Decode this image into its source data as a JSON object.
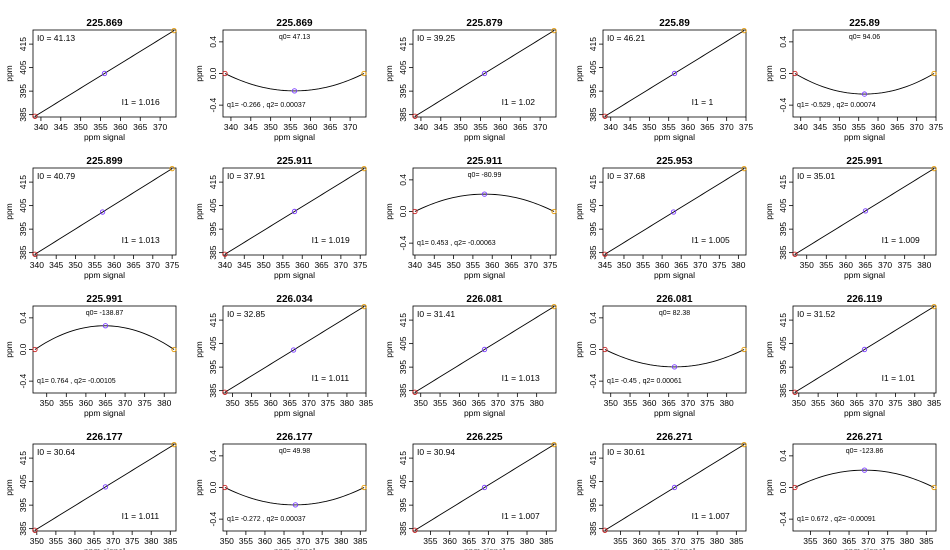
{
  "axis_text": {
    "xlabel": "ppm signal",
    "ylabel": "ppm"
  },
  "colors": {
    "start": "#cc2222",
    "mid": "#7a3cff",
    "end": "#e69900",
    "line": "#000000"
  },
  "chart_data": [
    {
      "type": "line",
      "title": "225.869",
      "xlabel": "ppm signal",
      "ylabel": "ppm",
      "xlim": [
        338,
        374
      ],
      "ylim": [
        384,
        421
      ],
      "xticks": [
        340,
        345,
        350,
        355,
        360,
        365,
        370
      ],
      "yticks": [
        385,
        395,
        405,
        415
      ],
      "model": "linear",
      "x": [
        338.5,
        356,
        373.5
      ],
      "intercept": 41.13,
      "slope": 1.016,
      "annotations": [
        {
          "label": "I0 = ",
          "value": "41.13",
          "pos": "top-left"
        },
        {
          "label": "I1 = ",
          "value": "1.016",
          "pos": "bottom-right"
        }
      ]
    },
    {
      "type": "line",
      "title": "225.869",
      "xlabel": "ppm signal",
      "ylabel": "ppm",
      "xlim": [
        338,
        374
      ],
      "ylim": [
        -0.55,
        0.55
      ],
      "xticks": [
        340,
        345,
        350,
        355,
        360,
        365,
        370
      ],
      "yticks": [
        -0.4,
        0.0,
        0.4
      ],
      "model": "quadratic",
      "x": [
        338.5,
        356,
        373.5
      ],
      "q0": "47.13",
      "q1": "-0.266",
      "q2": "0.00037",
      "annotations": [
        {
          "label": "q0= ",
          "value": "47.13",
          "pos": "top-center"
        },
        {
          "label": "q1= -0.266 , q2= ",
          "value": "0.00037",
          "pos": "bottom-left"
        }
      ]
    },
    {
      "type": "line",
      "title": "225.879",
      "xlabel": "ppm signal",
      "ylabel": "ppm",
      "xlim": [
        338,
        374
      ],
      "ylim": [
        384,
        421
      ],
      "xticks": [
        340,
        345,
        350,
        355,
        360,
        365,
        370
      ],
      "yticks": [
        385,
        395,
        405,
        415
      ],
      "model": "linear",
      "x": [
        338.5,
        356,
        373.5
      ],
      "intercept": 39.25,
      "slope": 1.02,
      "annotations": [
        {
          "label": "I0 = ",
          "value": "39.25",
          "pos": "top-left"
        },
        {
          "label": "I1 = ",
          "value": "1.02",
          "pos": "bottom-right"
        }
      ]
    },
    {
      "type": "line",
      "title": "225.89",
      "xlabel": "ppm signal",
      "ylabel": "ppm",
      "xlim": [
        338,
        375
      ],
      "ylim": [
        384,
        421
      ],
      "xticks": [
        340,
        345,
        350,
        355,
        360,
        365,
        370,
        375
      ],
      "yticks": [
        385,
        395,
        405,
        415
      ],
      "model": "linear",
      "x": [
        338.5,
        356.5,
        374.5
      ],
      "intercept": 46.21,
      "slope": 1,
      "annotations": [
        {
          "label": "I0 = ",
          "value": "46.21",
          "pos": "top-left"
        },
        {
          "label": "I1 = ",
          "value": "1",
          "pos": "bottom-right"
        }
      ]
    },
    {
      "type": "line",
      "title": "225.89",
      "xlabel": "ppm signal",
      "ylabel": "ppm",
      "xlim": [
        338,
        375
      ],
      "ylim": [
        -0.55,
        0.55
      ],
      "xticks": [
        340,
        345,
        350,
        355,
        360,
        365,
        370,
        375
      ],
      "yticks": [
        -0.4,
        0.0,
        0.4
      ],
      "model": "quadratic",
      "x": [
        338.5,
        356.5,
        374.5
      ],
      "q0": "94.06",
      "q1": "-0.529",
      "q2": "0.00074",
      "annotations": [
        {
          "label": "q0= ",
          "value": "94.06",
          "pos": "top-center"
        },
        {
          "label": "q1= -0.529 , q2= ",
          "value": "0.00074",
          "pos": "bottom-left"
        }
      ]
    },
    {
      "type": "line",
      "title": "225.899",
      "xlabel": "ppm signal",
      "ylabel": "ppm",
      "xlim": [
        339,
        376
      ],
      "ylim": [
        384,
        421
      ],
      "xticks": [
        340,
        345,
        350,
        355,
        360,
        365,
        370,
        375
      ],
      "yticks": [
        385,
        395,
        405,
        415
      ],
      "model": "linear",
      "x": [
        339.5,
        357,
        375
      ],
      "intercept": 40.79,
      "slope": 1.013,
      "annotations": [
        {
          "label": "I0 = ",
          "value": "40.79",
          "pos": "top-left"
        },
        {
          "label": "I1 = ",
          "value": "1.013",
          "pos": "bottom-right"
        }
      ]
    },
    {
      "type": "line",
      "title": "225.911",
      "xlabel": "ppm signal",
      "ylabel": "ppm",
      "xlim": [
        339.5,
        376.5
      ],
      "ylim": [
        384,
        421
      ],
      "xticks": [
        340,
        345,
        350,
        355,
        360,
        365,
        370,
        375
      ],
      "yticks": [
        385,
        395,
        405,
        415
      ],
      "model": "linear",
      "x": [
        340,
        358,
        376
      ],
      "intercept": 37.91,
      "slope": 1.019,
      "annotations": [
        {
          "label": "I0 = ",
          "value": "37.91",
          "pos": "top-left"
        },
        {
          "label": "I1 = ",
          "value": "1.019",
          "pos": "bottom-right"
        }
      ]
    },
    {
      "type": "line",
      "title": "225.911",
      "xlabel": "ppm signal",
      "ylabel": "ppm",
      "xlim": [
        339.5,
        376.5
      ],
      "ylim": [
        -0.55,
        0.55
      ],
      "xticks": [
        340,
        345,
        350,
        355,
        360,
        365,
        370,
        375
      ],
      "yticks": [
        -0.4,
        0.0,
        0.4
      ],
      "model": "quadratic",
      "x": [
        340,
        358,
        376
      ],
      "q0": "-80.99",
      "q1": "0.453",
      "q2": "-0.00063",
      "annotations": [
        {
          "label": "q0= ",
          "value": "-80.99",
          "pos": "top-center"
        },
        {
          "label": "q1= 0.453 , q2= ",
          "value": "-0.00063",
          "pos": "bottom-left"
        }
      ]
    },
    {
      "type": "line",
      "title": "225.953",
      "xlabel": "ppm signal",
      "ylabel": "ppm",
      "xlim": [
        344.5,
        382
      ],
      "ylim": [
        384,
        421
      ],
      "xticks": [
        345,
        350,
        355,
        360,
        365,
        370,
        375,
        380
      ],
      "yticks": [
        385,
        395,
        405,
        415
      ],
      "model": "linear",
      "x": [
        345,
        363,
        381.5
      ],
      "intercept": 37.68,
      "slope": 1.005,
      "annotations": [
        {
          "label": "I0 = ",
          "value": "37.68",
          "pos": "top-left"
        },
        {
          "label": "I1 = ",
          "value": "1.005",
          "pos": "bottom-right"
        }
      ]
    },
    {
      "type": "line",
      "title": "225.991",
      "xlabel": "ppm signal",
      "ylabel": "ppm",
      "xlim": [
        346.5,
        383
      ],
      "ylim": [
        384,
        421
      ],
      "xticks": [
        350,
        355,
        360,
        365,
        370,
        375,
        380
      ],
      "yticks": [
        385,
        395,
        405,
        415
      ],
      "model": "linear",
      "x": [
        347,
        365,
        382.5
      ],
      "intercept": 35.01,
      "slope": 1.009,
      "annotations": [
        {
          "label": "I0 = ",
          "value": "35.01",
          "pos": "top-left"
        },
        {
          "label": "I1 = ",
          "value": "1.009",
          "pos": "bottom-right"
        }
      ]
    },
    {
      "type": "line",
      "title": "225.991",
      "xlabel": "ppm signal",
      "ylabel": "ppm",
      "xlim": [
        346.5,
        383
      ],
      "ylim": [
        -0.55,
        0.55
      ],
      "xticks": [
        350,
        355,
        360,
        365,
        370,
        375,
        380
      ],
      "yticks": [
        -0.4,
        0.0,
        0.4
      ],
      "model": "quadratic",
      "x": [
        347,
        365,
        382.5
      ],
      "q0": "-138.87",
      "q1": "0.764",
      "q2": "-0.00105",
      "annotations": [
        {
          "label": "q0= ",
          "value": "-138.87",
          "pos": "top-center"
        },
        {
          "label": "q1= 0.764 , q2= ",
          "value": "-0.00105",
          "pos": "bottom-left"
        }
      ]
    },
    {
      "type": "line",
      "title": "226.034",
      "xlabel": "ppm signal",
      "ylabel": "ppm",
      "xlim": [
        347.5,
        385
      ],
      "ylim": [
        384,
        421
      ],
      "xticks": [
        350,
        355,
        360,
        365,
        370,
        375,
        380,
        385
      ],
      "yticks": [
        385,
        395,
        405,
        415
      ],
      "model": "linear",
      "x": [
        348,
        366,
        384.5
      ],
      "intercept": 32.85,
      "slope": 1.011,
      "annotations": [
        {
          "label": "I0 = ",
          "value": "32.85",
          "pos": "top-left"
        },
        {
          "label": "I1 = ",
          "value": "1.011",
          "pos": "bottom-right"
        }
      ]
    },
    {
      "type": "line",
      "title": "226.081",
      "xlabel": "ppm signal",
      "ylabel": "ppm",
      "xlim": [
        348,
        385
      ],
      "ylim": [
        384,
        421
      ],
      "xticks": [
        350,
        355,
        360,
        365,
        370,
        375,
        380
      ],
      "yticks": [
        385,
        395,
        405,
        415
      ],
      "model": "linear",
      "x": [
        348.5,
        366.5,
        384.5
      ],
      "intercept": 31.41,
      "slope": 1.013,
      "annotations": [
        {
          "label": "I0 = ",
          "value": "31.41",
          "pos": "top-left"
        },
        {
          "label": "I1 = ",
          "value": "1.013",
          "pos": "bottom-right"
        }
      ]
    },
    {
      "type": "line",
      "title": "226.081",
      "xlabel": "ppm signal",
      "ylabel": "ppm",
      "xlim": [
        348,
        385
      ],
      "ylim": [
        -0.55,
        0.55
      ],
      "xticks": [
        350,
        355,
        360,
        365,
        370,
        375,
        380
      ],
      "yticks": [
        -0.4,
        0.0,
        0.4
      ],
      "model": "quadratic",
      "x": [
        348.5,
        366.5,
        384.5
      ],
      "q0": "82.38",
      "q1": "-0.45",
      "q2": "0.00061",
      "annotations": [
        {
          "label": "q0= ",
          "value": "82.38",
          "pos": "top-center"
        },
        {
          "label": "q1= -0.45 , q2= ",
          "value": "0.00061",
          "pos": "bottom-left"
        }
      ]
    },
    {
      "type": "line",
      "title": "226.119",
      "xlabel": "ppm signal",
      "ylabel": "ppm",
      "xlim": [
        348.5,
        385.5
      ],
      "ylim": [
        384,
        421
      ],
      "xticks": [
        350,
        355,
        360,
        365,
        370,
        375,
        380,
        385
      ],
      "yticks": [
        385,
        395,
        405,
        415
      ],
      "model": "linear",
      "x": [
        349,
        367,
        385
      ],
      "intercept": 31.52,
      "slope": 1.01,
      "annotations": [
        {
          "label": "I0 = ",
          "value": "31.52",
          "pos": "top-left"
        },
        {
          "label": "I1 = ",
          "value": "1.01",
          "pos": "bottom-right"
        }
      ]
    },
    {
      "type": "line",
      "title": "226.177",
      "xlabel": "ppm signal",
      "ylabel": "ppm",
      "xlim": [
        349,
        386.5
      ],
      "ylim": [
        384,
        421
      ],
      "xticks": [
        350,
        355,
        360,
        365,
        370,
        375,
        380,
        385
      ],
      "yticks": [
        385,
        395,
        405,
        415
      ],
      "model": "linear",
      "x": [
        349.5,
        368,
        386
      ],
      "intercept": 30.64,
      "slope": 1.011,
      "annotations": [
        {
          "label": "I0 = ",
          "value": "30.64",
          "pos": "top-left"
        },
        {
          "label": "I1 = ",
          "value": "1.011",
          "pos": "bottom-right"
        }
      ]
    },
    {
      "type": "line",
      "title": "226.177",
      "xlabel": "ppm signal",
      "ylabel": "ppm",
      "xlim": [
        349,
        386.5
      ],
      "ylim": [
        -0.55,
        0.55
      ],
      "xticks": [
        350,
        355,
        360,
        365,
        370,
        375,
        380,
        385
      ],
      "yticks": [
        -0.4,
        0.0,
        0.4
      ],
      "model": "quadratic",
      "x": [
        349.5,
        368,
        386
      ],
      "q0": "49.98",
      "q1": "-0.272",
      "q2": "0.00037",
      "annotations": [
        {
          "label": "q0= ",
          "value": "49.98",
          "pos": "top-center"
        },
        {
          "label": "q1= -0.272 , q2= ",
          "value": "0.00037",
          "pos": "bottom-left"
        }
      ]
    },
    {
      "type": "line",
      "title": "226.225",
      "xlabel": "ppm signal",
      "ylabel": "ppm",
      "xlim": [
        350.5,
        387.5
      ],
      "ylim": [
        384,
        421
      ],
      "xticks": [
        355,
        360,
        365,
        370,
        375,
        380,
        385
      ],
      "yticks": [
        385,
        395,
        405,
        415
      ],
      "model": "linear",
      "x": [
        351,
        369,
        387
      ],
      "intercept": 30.94,
      "slope": 1.007,
      "annotations": [
        {
          "label": "I0 = ",
          "value": "30.94",
          "pos": "top-left"
        },
        {
          "label": "I1 = ",
          "value": "1.007",
          "pos": "bottom-right"
        }
      ]
    },
    {
      "type": "line",
      "title": "226.271",
      "xlabel": "ppm signal",
      "ylabel": "ppm",
      "xlim": [
        350.5,
        387.5
      ],
      "ylim": [
        384,
        421
      ],
      "xticks": [
        355,
        360,
        365,
        370,
        375,
        380,
        385
      ],
      "yticks": [
        385,
        395,
        405,
        415
      ],
      "model": "linear",
      "x": [
        351,
        369,
        387
      ],
      "intercept": 30.61,
      "slope": 1.007,
      "annotations": [
        {
          "label": "I0 = ",
          "value": "30.61",
          "pos": "top-left"
        },
        {
          "label": "I1 = ",
          "value": "1.007",
          "pos": "bottom-right"
        }
      ]
    },
    {
      "type": "line",
      "title": "226.271",
      "xlabel": "ppm signal",
      "ylabel": "ppm",
      "xlim": [
        350.5,
        387.5
      ],
      "ylim": [
        -0.55,
        0.55
      ],
      "xticks": [
        355,
        360,
        365,
        370,
        375,
        380,
        385
      ],
      "yticks": [
        -0.4,
        0.0,
        0.4
      ],
      "model": "quadratic",
      "x": [
        351,
        369,
        387
      ],
      "q0": "-123.86",
      "q1": "0.672",
      "q2": "-0.00091",
      "annotations": [
        {
          "label": "q0= ",
          "value": "-123.86",
          "pos": "top-center"
        },
        {
          "label": "q1= 0.672 , q2= ",
          "value": "-0.00091",
          "pos": "bottom-left"
        }
      ]
    }
  ]
}
